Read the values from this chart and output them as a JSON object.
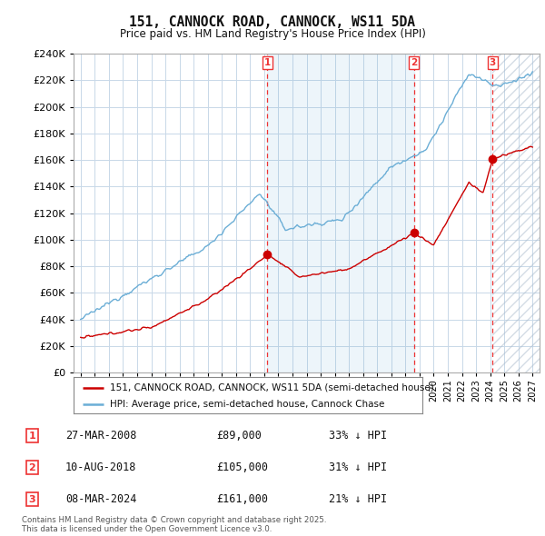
{
  "title": "151, CANNOCK ROAD, CANNOCK, WS11 5DA",
  "subtitle": "Price paid vs. HM Land Registry's House Price Index (HPI)",
  "hpi_color": "#6baed6",
  "price_color": "#cc0000",
  "vline_color": "#ee3333",
  "background_color": "#ffffff",
  "grid_color": "#c8d8e8",
  "sale_points": [
    {
      "date_num": 2008.23,
      "price": 89000,
      "label": "1"
    },
    {
      "date_num": 2018.61,
      "price": 105000,
      "label": "2"
    },
    {
      "date_num": 2024.18,
      "price": 161000,
      "label": "3"
    }
  ],
  "annotations": [
    {
      "label": "1",
      "date": "27-MAR-2008",
      "price": "£89,000",
      "note": "33% ↓ HPI"
    },
    {
      "label": "2",
      "date": "10-AUG-2018",
      "price": "£105,000",
      "note": "31% ↓ HPI"
    },
    {
      "label": "3",
      "date": "08-MAR-2024",
      "price": "£161,000",
      "note": "21% ↓ HPI"
    }
  ],
  "legend_entries": [
    "151, CANNOCK ROAD, CANNOCK, WS11 5DA (semi-detached house)",
    "HPI: Average price, semi-detached house, Cannock Chase"
  ],
  "footer": "Contains HM Land Registry data © Crown copyright and database right 2025.\nThis data is licensed under the Open Government Licence v3.0.",
  "ylim": [
    0,
    240000
  ],
  "yticks": [
    0,
    20000,
    40000,
    60000,
    80000,
    100000,
    120000,
    140000,
    160000,
    180000,
    200000,
    220000,
    240000
  ],
  "xlim_start": 1994.5,
  "xlim_end": 2027.5
}
